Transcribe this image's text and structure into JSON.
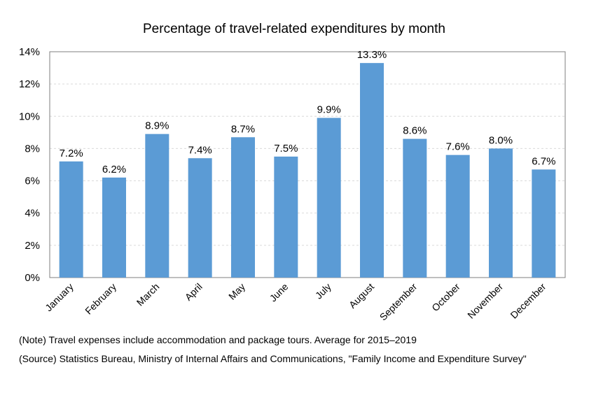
{
  "chart_data": {
    "type": "bar",
    "title": "Percentage of travel-related expenditures by month",
    "categories": [
      "January",
      "February",
      "March",
      "April",
      "May",
      "June",
      "July",
      "August",
      "September",
      "October",
      "November",
      "December"
    ],
    "values": [
      7.2,
      6.2,
      8.9,
      7.4,
      8.7,
      7.5,
      9.9,
      13.3,
      8.6,
      7.6,
      8.0,
      6.7
    ],
    "data_labels": [
      "7.2%",
      "6.2%",
      "8.9%",
      "7.4%",
      "8.7%",
      "7.5%",
      "9.9%",
      "13.3%",
      "8.6%",
      "7.6%",
      "8.0%",
      "6.7%"
    ],
    "ylim": [
      0,
      14
    ],
    "yticks": [
      0,
      2,
      4,
      6,
      8,
      10,
      12,
      14
    ],
    "ytick_labels": [
      "0%",
      "2%",
      "4%",
      "6%",
      "8%",
      "10%",
      "12%",
      "14%"
    ],
    "grid": true,
    "bar_color": "#5b9bd5",
    "xlabel": "",
    "ylabel": ""
  },
  "notes": {
    "note": "(Note) Travel expenses include accommodation and package tours. Average for 2015–2019",
    "source": "(Source) Statistics Bureau, Ministry of Internal Affairs and Communications, \"Family Income and Expenditure Survey\""
  }
}
